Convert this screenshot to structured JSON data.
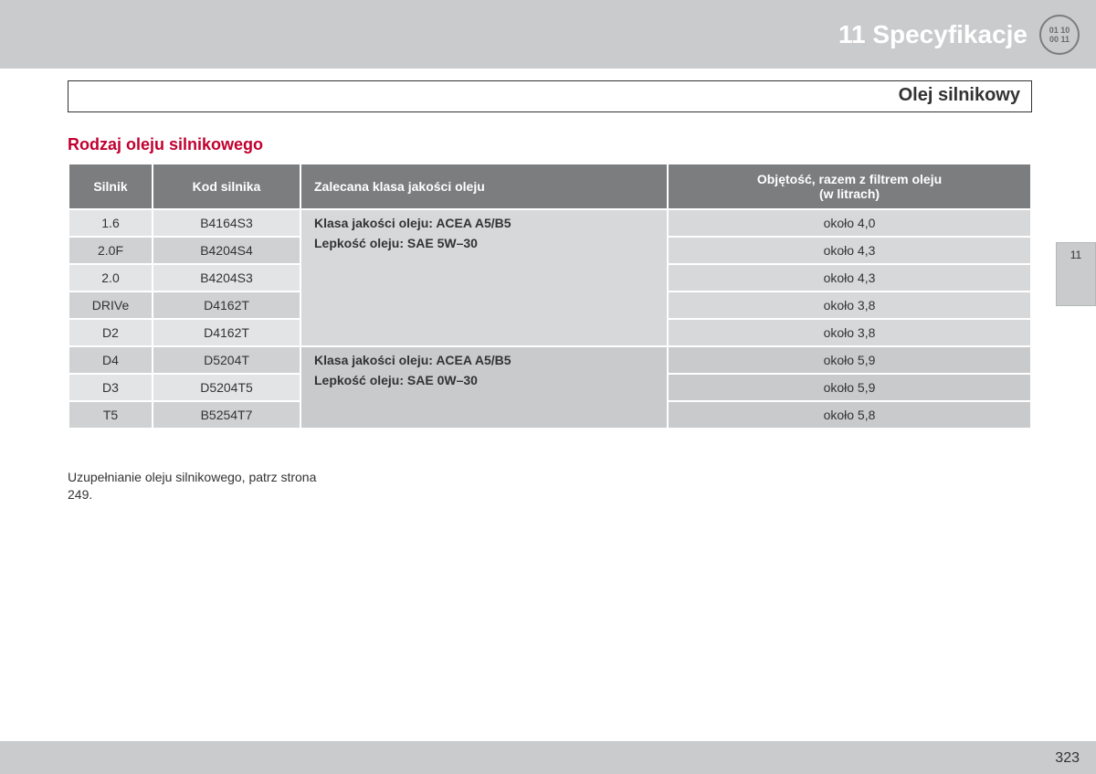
{
  "header": {
    "chapter": "11 Specyfikacje",
    "icon_line1": "01 10",
    "icon_line2": "00 11"
  },
  "section_title": "Olej silnikowy",
  "subheading": "Rodzaj oleju silnikowego",
  "table": {
    "columns": {
      "c1": "Silnik",
      "c2": "Kod silnika",
      "c3": "Zalecana klasa jakości oleju",
      "c4_line1": "Objętość, razem z filtrem oleju",
      "c4_line2": "(w litrach)"
    },
    "col_widths": {
      "c1": "90px",
      "c2": "160px",
      "c3": "400px",
      "c4": "auto"
    },
    "groups": [
      {
        "rec_line1": "Klasa jakości oleju: ACEA A5/B5",
        "rec_line2": "Lepkość oleju: SAE 5W–30",
        "group_class": "grp-a",
        "rows": [
          {
            "engine": "1.6",
            "code": "B4164S3",
            "vol": "około 4,0",
            "parity": "odd"
          },
          {
            "engine": "2.0F",
            "code": "B4204S4",
            "vol": "około 4,3",
            "parity": "even"
          },
          {
            "engine": "2.0",
            "code": "B4204S3",
            "vol": "około 4,3",
            "parity": "odd"
          },
          {
            "engine": "DRIVe",
            "code": "D4162T",
            "vol": "około 3,8",
            "parity": "even"
          },
          {
            "engine": "D2",
            "code": "D4162T",
            "vol": "około 3,8",
            "parity": "odd"
          }
        ]
      },
      {
        "rec_line1": "Klasa jakości oleju: ACEA A5/B5",
        "rec_line2": "Lepkość oleju: SAE 0W–30",
        "group_class": "grp-b",
        "rows": [
          {
            "engine": "D4",
            "code": "D5204T",
            "vol": "około 5,9",
            "parity": "even"
          },
          {
            "engine": "D3",
            "code": "D5204T5",
            "vol": "około 5,9",
            "parity": "odd"
          },
          {
            "engine": "T5",
            "code": "B5254T7",
            "vol": "około 5,8",
            "parity": "even"
          }
        ]
      }
    ]
  },
  "footnote": "Uzupełnianie oleju silnikowego, patrz strona 249.",
  "side_tab": "11",
  "page_number": "323",
  "colors": {
    "header_bg": "#c9cbcd",
    "th_bg": "#7b7d7f",
    "accent": "#c2002f"
  }
}
